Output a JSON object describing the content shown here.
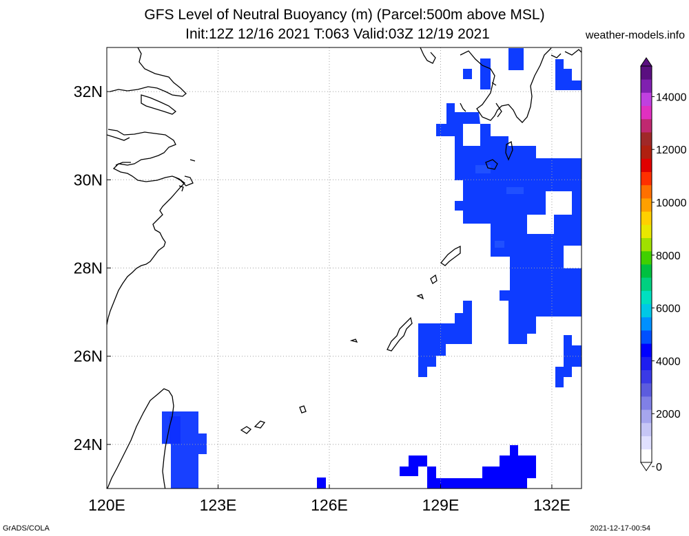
{
  "title": {
    "line1": "GFS Level of Neutral Buoyancy (m) (Parcel:500m above MSL)",
    "line2": "Init:12Z 12/16 2021 T:063 Valid:03Z 12/19 2021"
  },
  "site": "weather-models.info",
  "footer": {
    "left": "GrADS/COLA",
    "right": "2021-12-17-00:54"
  },
  "map": {
    "lon_range": [
      120,
      132.8
    ],
    "lat_range": [
      23,
      33
    ],
    "lon_ticks": [
      {
        "value": 120,
        "label": "120E"
      },
      {
        "value": 123,
        "label": "123E"
      },
      {
        "value": 126,
        "label": "126E"
      },
      {
        "value": 129,
        "label": "129E"
      },
      {
        "value": 132,
        "label": "132E"
      }
    ],
    "lat_ticks": [
      {
        "value": 24,
        "label": "24N"
      },
      {
        "value": 26,
        "label": "26N"
      },
      {
        "value": 28,
        "label": "28N"
      },
      {
        "value": 30,
        "label": "30N"
      },
      {
        "value": 32,
        "label": "32N"
      }
    ],
    "gridlines": "dotted"
  },
  "colorbar": {
    "range": [
      0,
      15000
    ],
    "labels": [
      "0",
      "2000",
      "4000",
      "6000",
      "8000",
      "10000",
      "12000",
      "14000"
    ],
    "colors": [
      "#ffffff",
      "#e0e0ff",
      "#c6c6f6",
      "#a6a6ee",
      "#8080e6",
      "#5c5cde",
      "#3a3ae6",
      "#1e1ef0",
      "#0000ff",
      "#0050ff",
      "#0090ff",
      "#00c8e6",
      "#00e0c0",
      "#00d080",
      "#00c040",
      "#40d000",
      "#a0e000",
      "#e8e800",
      "#ffd000",
      "#ffa000",
      "#ff7000",
      "#ff3000",
      "#e00000",
      "#b02010",
      "#a02828",
      "#c02870",
      "#e030c0",
      "#c040e0",
      "#8020b0",
      "#5a1080"
    ]
  }
}
